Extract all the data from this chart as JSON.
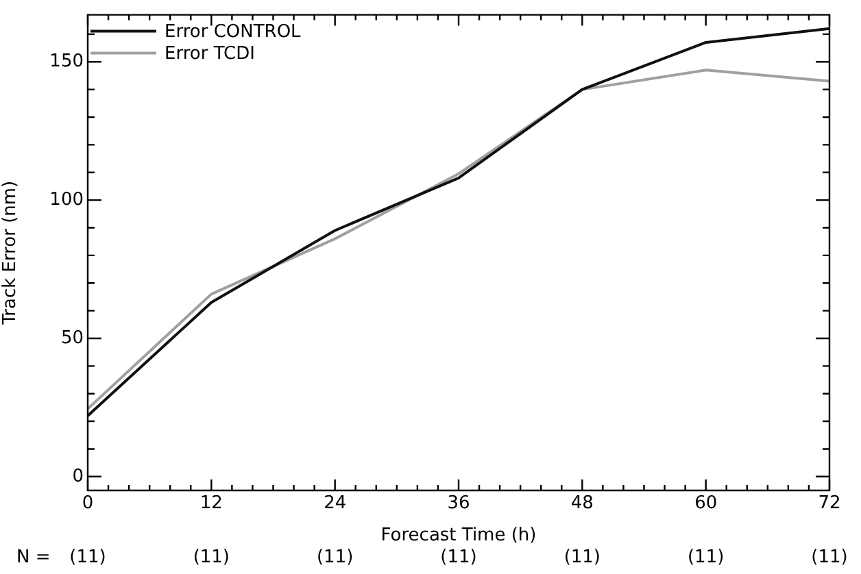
{
  "chart_data": {
    "type": "line",
    "xlabel": "Forecast Time (h)",
    "ylabel": "Track Error (nm)",
    "x": [
      0,
      12,
      24,
      36,
      48,
      60,
      72
    ],
    "series": [
      {
        "name": "Error CONTROL",
        "color": "#111111",
        "values": [
          22,
          63,
          89,
          108,
          140,
          157,
          162
        ]
      },
      {
        "name": "Error TCDI",
        "color": "#a0a0a0",
        "values": [
          24.5,
          66,
          86,
          109.5,
          140,
          147,
          143
        ]
      }
    ],
    "xlim": [
      0,
      72
    ],
    "xticks": [
      0,
      {
        "value": 2,
        "label": null
      },
      {
        "value": 4,
        "label": null
      },
      {
        "value": 6,
        "label": null
      },
      {
        "value": 8,
        "label": null
      },
      {
        "value": 10,
        "label": null
      },
      12,
      {
        "value": 14,
        "label": null
      },
      {
        "value": 16,
        "label": null
      },
      {
        "value": 18,
        "label": null
      },
      {
        "value": 20,
        "label": null
      },
      {
        "value": 22,
        "label": null
      },
      24,
      {
        "value": 26,
        "label": null
      },
      {
        "value": 28,
        "label": null
      },
      {
        "value": 30,
        "label": null
      },
      {
        "value": 32,
        "label": null
      },
      {
        "value": 34,
        "label": null
      },
      36,
      {
        "value": 38,
        "label": null
      },
      {
        "value": 40,
        "label": null
      },
      {
        "value": 42,
        "label": null
      },
      {
        "value": 44,
        "label": null
      },
      {
        "value": 46,
        "label": null
      },
      48,
      {
        "value": 50,
        "label": null
      },
      {
        "value": 52,
        "label": null
      },
      {
        "value": 54,
        "label": null
      },
      {
        "value": 56,
        "label": null
      },
      {
        "value": 58,
        "label": null
      },
      60,
      {
        "value": 62,
        "label": null
      },
      {
        "value": 64,
        "label": null
      },
      {
        "value": 66,
        "label": null
      },
      {
        "value": 68,
        "label": null
      },
      {
        "value": 70,
        "label": null
      },
      72
    ],
    "ylim": [
      -5,
      167
    ],
    "yticks": [
      0,
      {
        "value": 10,
        "label": null
      },
      {
        "value": 20,
        "label": null
      },
      {
        "value": 30,
        "label": null
      },
      {
        "value": 40,
        "label": null
      },
      50,
      {
        "value": 60,
        "label": null
      },
      {
        "value": 70,
        "label": null
      },
      {
        "value": 80,
        "label": null
      },
      {
        "value": 90,
        "label": null
      },
      100,
      {
        "value": 110,
        "label": null
      },
      {
        "value": 120,
        "label": null
      },
      {
        "value": 130,
        "label": null
      },
      {
        "value": 140,
        "label": null
      },
      150,
      {
        "value": 160,
        "label": null
      }
    ],
    "annotations": [
      "N =",
      "(11)",
      "(11)",
      "(11)",
      "(11)",
      "(11)",
      "(11)",
      "(11)"
    ],
    "legend": "top left",
    "marker": "none",
    "line_style": "solid"
  }
}
